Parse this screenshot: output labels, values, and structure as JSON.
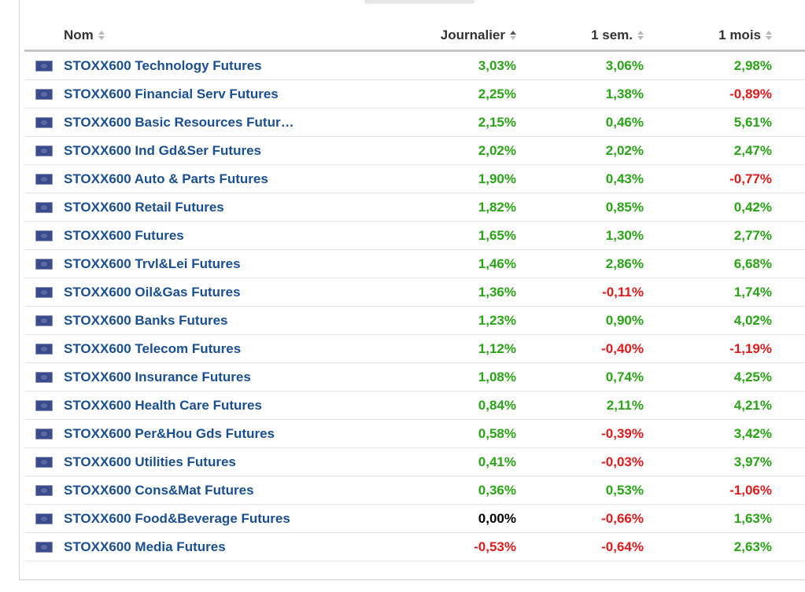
{
  "columns": {
    "name": "Nom",
    "daily": "Journalier",
    "week": "1 sem.",
    "month": "1 mois"
  },
  "colors": {
    "positive": "#2aa317",
    "negative": "#e01b1b",
    "neutral": "#000000",
    "link": "#1a4f91"
  },
  "rows": [
    {
      "flag": "eu-flag-icon",
      "name": "STOXX600 Technology Futures",
      "daily": "3,03%",
      "week": "3,06%",
      "month": "2,98%"
    },
    {
      "flag": "eu-flag-icon",
      "name": "STOXX600 Financial Serv Futures",
      "daily": "2,25%",
      "week": "1,38%",
      "month": "-0,89%"
    },
    {
      "flag": "eu-flag-icon",
      "name": "STOXX600 Basic Resources Futur…",
      "daily": "2,15%",
      "week": "0,46%",
      "month": "5,61%"
    },
    {
      "flag": "eu-flag-icon",
      "name": "STOXX600 Ind Gd&Ser Futures",
      "daily": "2,02%",
      "week": "2,02%",
      "month": "2,47%"
    },
    {
      "flag": "eu-flag-icon",
      "name": "STOXX600 Auto & Parts Futures",
      "daily": "1,90%",
      "week": "0,43%",
      "month": "-0,77%"
    },
    {
      "flag": "eu-flag-icon",
      "name": "STOXX600 Retail Futures",
      "daily": "1,82%",
      "week": "0,85%",
      "month": "0,42%"
    },
    {
      "flag": "eu-flag-icon",
      "name": "STOXX600 Futures",
      "daily": "1,65%",
      "week": "1,30%",
      "month": "2,77%"
    },
    {
      "flag": "eu-flag-icon",
      "name": "STOXX600 Trvl&Lei Futures",
      "daily": "1,46%",
      "week": "2,86%",
      "month": "6,68%"
    },
    {
      "flag": "eu-flag-icon",
      "name": "STOXX600 Oil&Gas Futures",
      "daily": "1,36%",
      "week": "-0,11%",
      "month": "1,74%"
    },
    {
      "flag": "eu-flag-icon",
      "name": "STOXX600 Banks Futures",
      "daily": "1,23%",
      "week": "0,90%",
      "month": "4,02%"
    },
    {
      "flag": "eu-flag-icon",
      "name": "STOXX600 Telecom Futures",
      "daily": "1,12%",
      "week": "-0,40%",
      "month": "-1,19%"
    },
    {
      "flag": "eu-flag-icon",
      "name": "STOXX600 Insurance Futures",
      "daily": "1,08%",
      "week": "0,74%",
      "month": "4,25%"
    },
    {
      "flag": "eu-flag-icon",
      "name": "STOXX600 Health Care Futures",
      "daily": "0,84%",
      "week": "2,11%",
      "month": "4,21%"
    },
    {
      "flag": "eu-flag-icon",
      "name": "STOXX600 Per&Hou Gds Futures",
      "daily": "0,58%",
      "week": "-0,39%",
      "month": "3,42%"
    },
    {
      "flag": "eu-flag-icon",
      "name": "STOXX600 Utilities Futures",
      "daily": "0,41%",
      "week": "-0,03%",
      "month": "3,97%"
    },
    {
      "flag": "eu-flag-icon",
      "name": "STOXX600 Cons&Mat Futures",
      "daily": "0,36%",
      "week": "0,53%",
      "month": "-1,06%"
    },
    {
      "flag": "eu-flag-icon",
      "name": "STOXX600 Food&Beverage Futures",
      "daily": "0,00%",
      "week": "-0,66%",
      "month": "1,63%"
    },
    {
      "flag": "eu-flag-icon",
      "name": "STOXX600 Media Futures",
      "daily": "-0,53%",
      "week": "-0,64%",
      "month": "2,63%"
    }
  ]
}
